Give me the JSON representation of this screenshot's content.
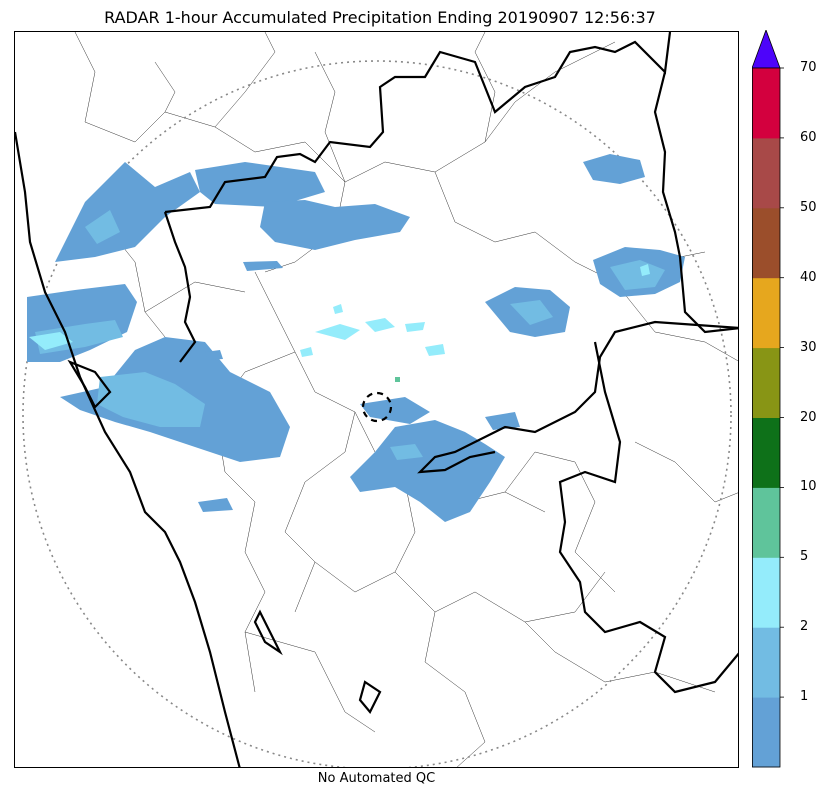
{
  "title": "RADAR 1-hour Accumulated Precipitation Ending 20190907 12:56:37",
  "footer": "No Automated QC",
  "colorbar": {
    "ticks": [
      "1",
      "2",
      "5",
      "10",
      "20",
      "30",
      "40",
      "50",
      "60",
      "70"
    ],
    "colors": [
      "#63a1d6",
      "#72bce3",
      "#94ecfb",
      "#5fc49b",
      "#0e7119",
      "#889515",
      "#e6a71e",
      "#9b4e2b",
      "#a84948",
      "#d3003e"
    ],
    "extend_color": "#4d04fa"
  },
  "map": {
    "range_ring_color": "#888888",
    "precip_colors": {
      "light": "#63a1d6",
      "moderate": "#72bce3",
      "heavy": "#94ecfb",
      "cell": "#5fc49b"
    }
  }
}
